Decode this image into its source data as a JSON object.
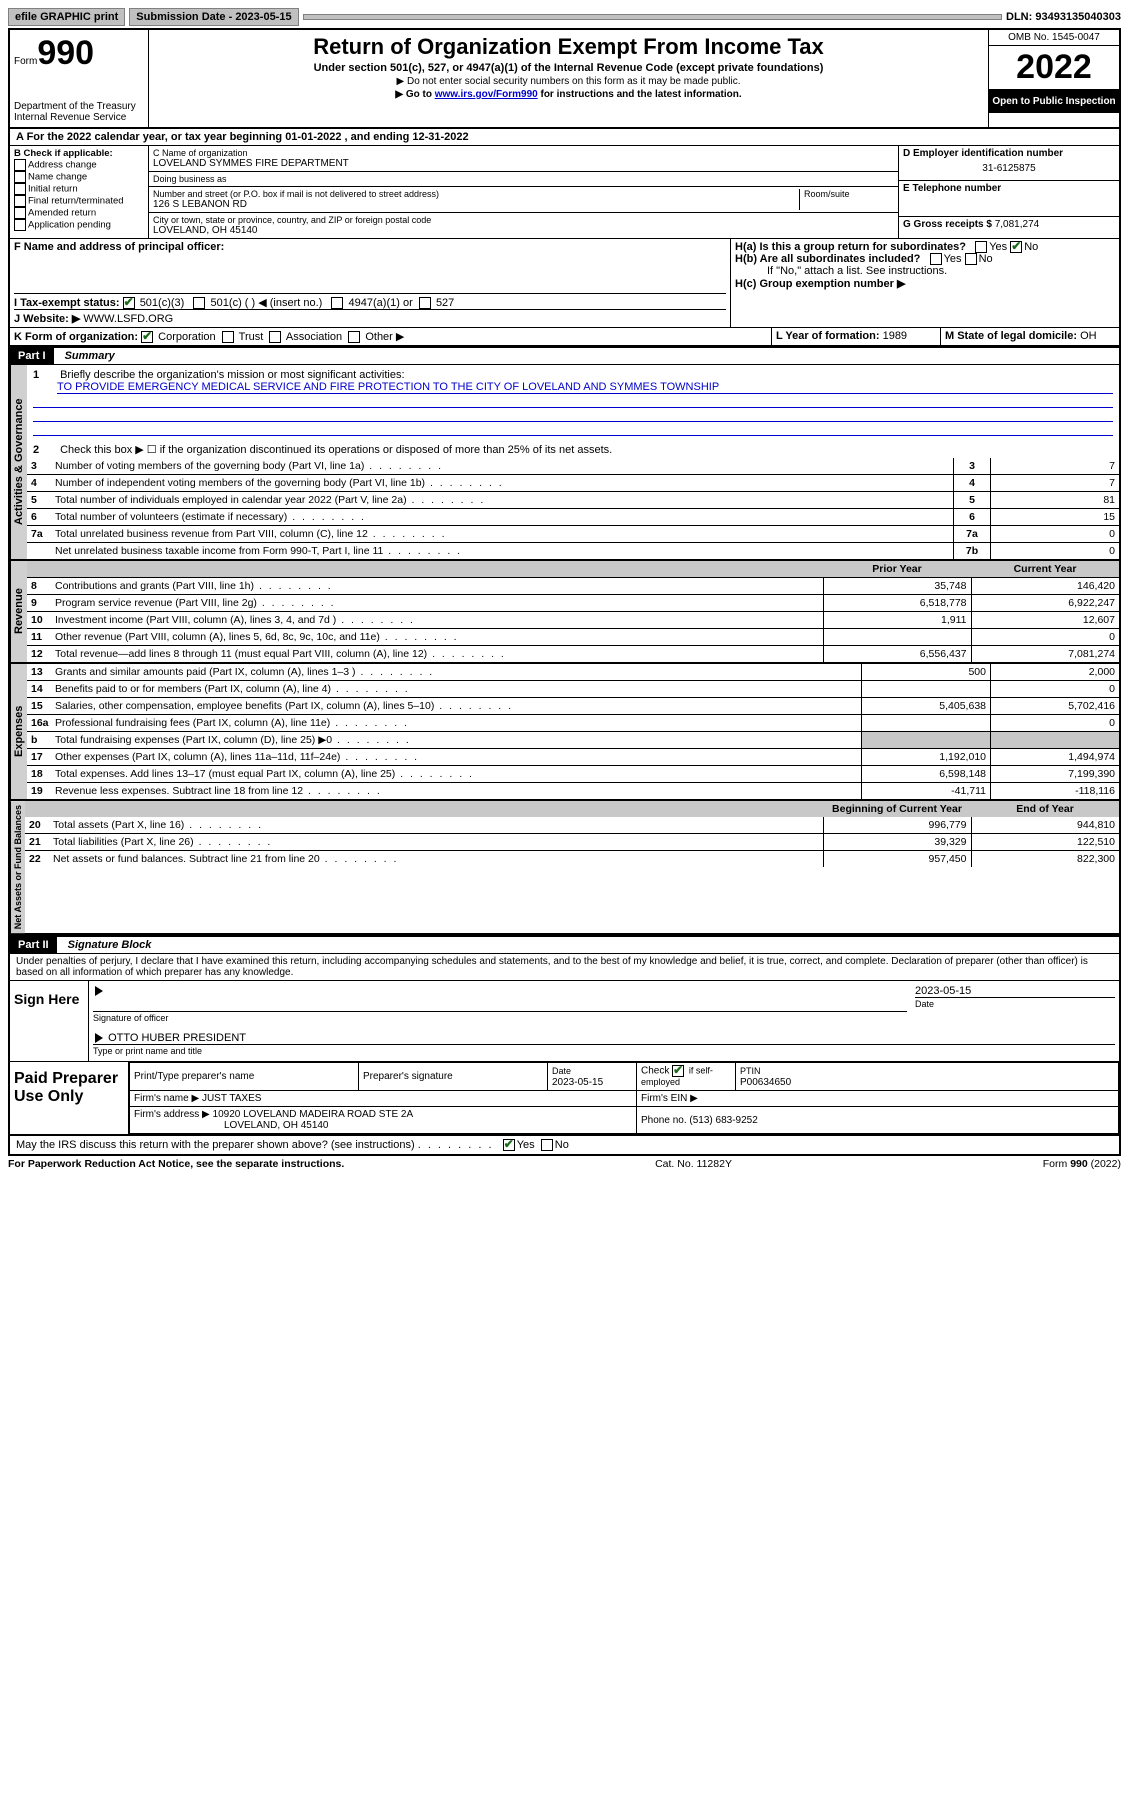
{
  "topbar": {
    "efile": "efile GRAPHIC print",
    "submission_label": "Submission Date - 2023-05-15",
    "dln": "DLN: 93493135040303"
  },
  "header": {
    "form_prefix": "Form",
    "form_num": "990",
    "dept": "Department of the Treasury",
    "irs": "Internal Revenue Service",
    "title": "Return of Organization Exempt From Income Tax",
    "sub": "Under section 501(c), 527, or 4947(a)(1) of the Internal Revenue Code (except private foundations)",
    "nossn": "▶ Do not enter social security numbers on this form as it may be made public.",
    "goto_pre": "▶ Go to ",
    "goto_link": "www.irs.gov/Form990",
    "goto_post": " for instructions and the latest information.",
    "omb": "OMB No. 1545-0047",
    "year": "2022",
    "open": "Open to Public Inspection"
  },
  "a_line": "A For the 2022 calendar year, or tax year beginning 01-01-2022   , and ending 12-31-2022",
  "boxB": {
    "title": "B Check if applicable:",
    "items": [
      "Address change",
      "Name change",
      "Initial return",
      "Final return/terminated",
      "Amended return",
      "Application pending"
    ]
  },
  "boxC": {
    "name_label": "C Name of organization",
    "name": "LOVELAND SYMMES FIRE DEPARTMENT",
    "dba_label": "Doing business as",
    "dba": "",
    "street_label": "Number and street (or P.O. box if mail is not delivered to street address)",
    "room_label": "Room/suite",
    "street": "126 S LEBANON RD",
    "city_label": "City or town, state or province, country, and ZIP or foreign postal code",
    "city": "LOVELAND, OH  45140"
  },
  "boxD": {
    "label": "D Employer identification number",
    "val": "31-6125875"
  },
  "boxE": {
    "label": "E Telephone number",
    "val": ""
  },
  "boxG": {
    "label": "G Gross receipts $",
    "val": "7,081,274"
  },
  "boxF": {
    "label": "F Name and address of principal officer:",
    "val": ""
  },
  "boxH": {
    "ha": "H(a)  Is this a group return for subordinates?",
    "hb": "H(b)  Are all subordinates included?",
    "hb_note": "If \"No,\" attach a list. See instructions.",
    "hc": "H(c)  Group exemption number ▶"
  },
  "boxI": {
    "label": "I   Tax-exempt status:",
    "c3": "501(c)(3)",
    "c": "501(c) (  ) ◀ (insert no.)",
    "a1": "4947(a)(1) or",
    "s527": "527"
  },
  "boxJ": {
    "label": "J   Website: ▶",
    "val": "WWW.LSFD.ORG"
  },
  "boxK": {
    "label": "K Form of organization:",
    "corp": "Corporation",
    "trust": "Trust",
    "assoc": "Association",
    "other": "Other ▶"
  },
  "boxL": {
    "label": "L Year of formation:",
    "val": "1989"
  },
  "boxM": {
    "label": "M State of legal domicile:",
    "val": "OH"
  },
  "part1": {
    "hdr": "Part I",
    "title": "Summary"
  },
  "summary": {
    "line1_label": "Briefly describe the organization's mission or most significant activities:",
    "line1_val": "TO PROVIDE EMERGENCY MEDICAL SERVICE AND FIRE PROTECTION TO THE CITY OF LOVELAND AND SYMMES TOWNSHIP",
    "line2": "Check this box ▶ ☐  if the organization discontinued its operations or disposed of more than 25% of its net assets.",
    "lines_gov": [
      {
        "n": "3",
        "t": "Number of voting members of the governing body (Part VI, line 1a)",
        "box": "3",
        "v": "7"
      },
      {
        "n": "4",
        "t": "Number of independent voting members of the governing body (Part VI, line 1b)",
        "box": "4",
        "v": "7"
      },
      {
        "n": "5",
        "t": "Total number of individuals employed in calendar year 2022 (Part V, line 2a)",
        "box": "5",
        "v": "81"
      },
      {
        "n": "6",
        "t": "Total number of volunteers (estimate if necessary)",
        "box": "6",
        "v": "15"
      },
      {
        "n": "7a",
        "t": "Total unrelated business revenue from Part VIII, column (C), line 12",
        "box": "7a",
        "v": "0"
      },
      {
        "n": "",
        "t": "Net unrelated business taxable income from Form 990-T, Part I, line 11",
        "box": "7b",
        "v": "0"
      }
    ],
    "col_prior": "Prior Year",
    "col_curr": "Current Year",
    "rev": [
      {
        "n": "8",
        "t": "Contributions and grants (Part VIII, line 1h)",
        "p": "35,748",
        "c": "146,420"
      },
      {
        "n": "9",
        "t": "Program service revenue (Part VIII, line 2g)",
        "p": "6,518,778",
        "c": "6,922,247"
      },
      {
        "n": "10",
        "t": "Investment income (Part VIII, column (A), lines 3, 4, and 7d )",
        "p": "1,911",
        "c": "12,607"
      },
      {
        "n": "11",
        "t": "Other revenue (Part VIII, column (A), lines 5, 6d, 8c, 9c, 10c, and 11e)",
        "p": "",
        "c": "0"
      },
      {
        "n": "12",
        "t": "Total revenue—add lines 8 through 11 (must equal Part VIII, column (A), line 12)",
        "p": "6,556,437",
        "c": "7,081,274"
      }
    ],
    "exp": [
      {
        "n": "13",
        "t": "Grants and similar amounts paid (Part IX, column (A), lines 1–3 )",
        "p": "500",
        "c": "2,000"
      },
      {
        "n": "14",
        "t": "Benefits paid to or for members (Part IX, column (A), line 4)",
        "p": "",
        "c": "0"
      },
      {
        "n": "15",
        "t": "Salaries, other compensation, employee benefits (Part IX, column (A), lines 5–10)",
        "p": "5,405,638",
        "c": "5,702,416"
      },
      {
        "n": "16a",
        "t": "Professional fundraising fees (Part IX, column (A), line 11e)",
        "p": "",
        "c": "0"
      },
      {
        "n": "b",
        "t": "Total fundraising expenses (Part IX, column (D), line 25) ▶0",
        "p": "shade",
        "c": "shade"
      },
      {
        "n": "17",
        "t": "Other expenses (Part IX, column (A), lines 11a–11d, 11f–24e)",
        "p": "1,192,010",
        "c": "1,494,974"
      },
      {
        "n": "18",
        "t": "Total expenses. Add lines 13–17 (must equal Part IX, column (A), line 25)",
        "p": "6,598,148",
        "c": "7,199,390"
      },
      {
        "n": "19",
        "t": "Revenue less expenses. Subtract line 18 from line 12",
        "p": "-41,711",
        "c": "-118,116"
      }
    ],
    "col_beg": "Beginning of Current Year",
    "col_end": "End of Year",
    "net": [
      {
        "n": "20",
        "t": "Total assets (Part X, line 16)",
        "p": "996,779",
        "c": "944,810"
      },
      {
        "n": "21",
        "t": "Total liabilities (Part X, line 26)",
        "p": "39,329",
        "c": "122,510"
      },
      {
        "n": "22",
        "t": "Net assets or fund balances. Subtract line 21 from line 20",
        "p": "957,450",
        "c": "822,300"
      }
    ]
  },
  "tabs": {
    "gov": "Activities & Governance",
    "rev": "Revenue",
    "exp": "Expenses",
    "net": "Net Assets or Fund Balances"
  },
  "part2": {
    "hdr": "Part II",
    "title": "Signature Block"
  },
  "penalty": "Under penalties of perjury, I declare that I have examined this return, including accompanying schedules and statements, and to the best of my knowledge and belief, it is true, correct, and complete. Declaration of preparer (other than officer) is based on all information of which preparer has any knowledge.",
  "sign": {
    "here": "Sign Here",
    "sig_label": "Signature of officer",
    "date": "2023-05-15",
    "date_label": "Date",
    "name": "OTTO HUBER  PRESIDENT",
    "name_label": "Type or print name and title"
  },
  "paid": {
    "label": "Paid Preparer Use Only",
    "col1": "Print/Type preparer's name",
    "col2": "Preparer's signature",
    "col3_l": "Date",
    "col3": "2023-05-15",
    "col4_l": "Check",
    "col4_t": "if self-employed",
    "col5_l": "PTIN",
    "col5": "P00634650",
    "firm_l": "Firm's name    ▶",
    "firm": "JUST TAXES",
    "ein_l": "Firm's EIN ▶",
    "addr_l": "Firm's address ▶",
    "addr1": "10920 LOVELAND MADEIRA ROAD STE 2A",
    "addr2": "LOVELAND, OH  45140",
    "phone_l": "Phone no.",
    "phone": "(513) 683-9252"
  },
  "discuss": "May the IRS discuss this return with the preparer shown above? (see instructions)",
  "footer": {
    "left": "For Paperwork Reduction Act Notice, see the separate instructions.",
    "mid": "Cat. No. 11282Y",
    "right": "Form 990 (2022)"
  }
}
